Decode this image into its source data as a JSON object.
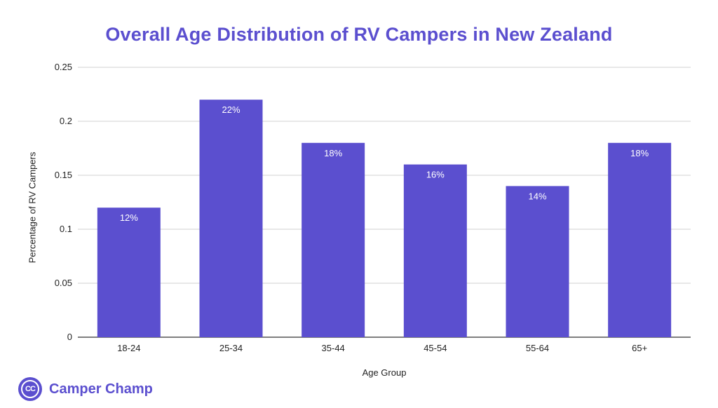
{
  "colors": {
    "accent": "#5b4fcf",
    "bar": "#5b4fcf",
    "grid": "#d0d0d0",
    "text": "#222222"
  },
  "brand": {
    "name": "Camper Champ",
    "logo_text": "CC",
    "logo_icon": "camper-champ-logo-icon"
  },
  "chart_data": {
    "type": "bar",
    "title": "Overall Age Distribution of RV Campers in New Zealand",
    "xlabel": "Age Group",
    "ylabel": "Percentage of RV Campers",
    "categories": [
      "18-24",
      "25-34",
      "35-44",
      "45-54",
      "55-64",
      "65+"
    ],
    "values": [
      0.12,
      0.22,
      0.18,
      0.16,
      0.14,
      0.18
    ],
    "data_labels": [
      "12%",
      "22%",
      "18%",
      "16%",
      "14%",
      "18%"
    ],
    "yticks": [
      0,
      0.05,
      0.1,
      0.15,
      0.2,
      0.25
    ],
    "ytick_labels": [
      "0",
      "0.05",
      "0.1",
      "0.15",
      "0.2",
      "0.25"
    ],
    "ylim": [
      0,
      0.25
    ],
    "grid": true,
    "legend": "none"
  }
}
